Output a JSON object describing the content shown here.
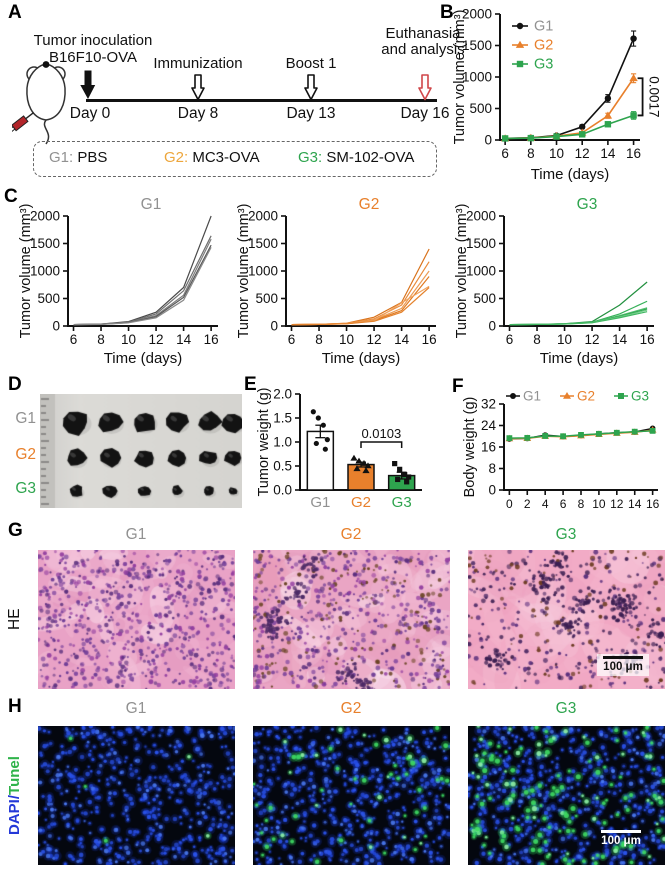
{
  "colors": {
    "g1": "#919191",
    "g2": "#E8802C",
    "g3": "#2EA44E",
    "black": "#111111",
    "dapi_blue": "#2438D8",
    "tunel_green": "#2FB34A",
    "red_arrow": "#D0474A"
  },
  "panel_a": {
    "letter": "A",
    "inoculation_line1": "Tumor inoculation",
    "inoculation_line2": "B16F10-OVA",
    "event_immunization": "Immunization",
    "event_boost": "Boost 1",
    "event_euthanasia_line1": "Euthanasia",
    "event_euthanasia_line2": "and analysis",
    "days": [
      "Day 0",
      "Day 8",
      "Day 13",
      "Day 16"
    ],
    "groups": [
      {
        "id": "G1:",
        "label": "PBS"
      },
      {
        "id": "G2:",
        "label": "MC3-OVA"
      },
      {
        "id": "G3:",
        "label": "SM-102-OVA"
      }
    ]
  },
  "panel_b": {
    "letter": "B"
  },
  "panel_c": {
    "letter": "C"
  },
  "panel_d": {
    "letter": "D",
    "row_labels": [
      "G1",
      "G2",
      "G3"
    ]
  },
  "panel_e": {
    "letter": "E"
  },
  "panel_f": {
    "letter": "F"
  },
  "panel_g": {
    "letter": "G",
    "side_label": "HE",
    "titles": [
      "G1",
      "G2",
      "G3"
    ],
    "scale_bar": "100 μm"
  },
  "panel_h": {
    "letter": "H",
    "side_label_dapi": "DAPI/",
    "side_label_tunel": "Tunel",
    "titles": [
      "G1",
      "G2",
      "G3"
    ],
    "scale_bar": "100 μm"
  },
  "chart_data": {
    "B": {
      "type": "line",
      "title": "",
      "xlabel": "Time (days)",
      "ylabel": "Tumor volume (mm³)",
      "xlim": [
        5.6,
        16.5
      ],
      "ylim": [
        0,
        2000
      ],
      "xticks": [
        6,
        8,
        10,
        12,
        14,
        16
      ],
      "yticks": [
        0,
        500,
        1000,
        1500,
        2000
      ],
      "x": [
        6,
        8,
        10,
        12,
        14,
        16
      ],
      "series": [
        {
          "name": "G1",
          "color": "#111111",
          "label_color": "#919191",
          "marker": "circle",
          "values": [
            25,
            35,
            70,
            210,
            660,
            1610
          ],
          "err": [
            5,
            8,
            12,
            30,
            60,
            120
          ]
        },
        {
          "name": "G2",
          "color": "#E8802C",
          "label_color": "#E8802C",
          "marker": "triangle",
          "values": [
            25,
            32,
            60,
            115,
            385,
            980
          ],
          "err": [
            5,
            6,
            10,
            18,
            40,
            70
          ]
        },
        {
          "name": "G3",
          "color": "#2EA44E",
          "label_color": "#2EA44E",
          "marker": "square",
          "values": [
            25,
            30,
            55,
            90,
            250,
            390
          ],
          "err": [
            5,
            6,
            10,
            15,
            35,
            60
          ]
        }
      ],
      "legend": "vertical-inside",
      "annotation": {
        "type": "vbracket",
        "x": 16,
        "y1": 980,
        "y2": 390,
        "label": "0.0017"
      }
    },
    "C_G1": {
      "type": "line",
      "title": "G1",
      "title_color": "#919191",
      "xlabel": "Time (days)",
      "ylabel": "Tumor volume (mm³)",
      "xlim": [
        5.6,
        16.5
      ],
      "ylim": [
        0,
        2000
      ],
      "xticks": [
        6,
        8,
        10,
        12,
        14,
        16
      ],
      "yticks": [
        0,
        500,
        1000,
        1500,
        2000
      ],
      "x": [
        6,
        8,
        10,
        12,
        14,
        16
      ],
      "series": [
        {
          "color": "#4a4a4a",
          "values": [
            25,
            35,
            80,
            250,
            700,
            2000
          ]
        },
        {
          "color": "#6e6e6e",
          "values": [
            25,
            35,
            70,
            220,
            640,
            1640
          ]
        },
        {
          "color": "#7d7d7d",
          "values": [
            25,
            32,
            65,
            190,
            560,
            1580
          ]
        },
        {
          "color": "#585858",
          "values": [
            25,
            32,
            62,
            170,
            520,
            1470
          ]
        },
        {
          "color": "#8a8a8a",
          "values": [
            25,
            30,
            58,
            150,
            470,
            1430
          ]
        }
      ]
    },
    "C_G2": {
      "type": "line",
      "title": "G2",
      "title_color": "#E8802C",
      "xlabel": "Time (days)",
      "ylabel": "Tumor volume (mm³)",
      "xlim": [
        5.6,
        16.5
      ],
      "ylim": [
        0,
        2000
      ],
      "xticks": [
        6,
        8,
        10,
        12,
        14,
        16
      ],
      "yticks": [
        0,
        500,
        1000,
        1500,
        2000
      ],
      "x": [
        6,
        8,
        10,
        12,
        14,
        16
      ],
      "series": [
        {
          "color": "#d9731c",
          "values": [
            25,
            30,
            50,
            160,
            430,
            1400
          ]
        },
        {
          "color": "#e98b3a",
          "values": [
            25,
            30,
            48,
            130,
            380,
            1170
          ]
        },
        {
          "color": "#ec9c55",
          "values": [
            25,
            30,
            45,
            110,
            320,
            1000
          ]
        },
        {
          "color": "#e07b22",
          "values": [
            25,
            30,
            42,
            100,
            280,
            900
          ]
        },
        {
          "color": "#f0a35e",
          "values": [
            25,
            30,
            40,
            95,
            420,
            720
          ]
        },
        {
          "color": "#e4832e",
          "values": [
            25,
            30,
            40,
            85,
            250,
            700
          ]
        }
      ]
    },
    "C_G3": {
      "type": "line",
      "title": "G3",
      "title_color": "#2EA44E",
      "xlabel": "Time (days)",
      "ylabel": "Tumor volume (mm³)",
      "xlim": [
        5.6,
        16.5
      ],
      "ylim": [
        0,
        2000
      ],
      "xticks": [
        6,
        8,
        10,
        12,
        14,
        16
      ],
      "yticks": [
        0,
        500,
        1000,
        1500,
        2000
      ],
      "x": [
        6,
        8,
        10,
        12,
        14,
        16
      ],
      "series": [
        {
          "color": "#22903f",
          "values": [
            25,
            30,
            42,
            80,
            380,
            800
          ]
        },
        {
          "color": "#36b159",
          "values": [
            25,
            30,
            40,
            70,
            220,
            450
          ]
        },
        {
          "color": "#51c06f",
          "values": [
            25,
            28,
            38,
            65,
            190,
            330
          ]
        },
        {
          "color": "#2ea44e",
          "values": [
            25,
            28,
            38,
            62,
            175,
            310
          ]
        },
        {
          "color": "#6fcd87",
          "values": [
            25,
            28,
            36,
            60,
            165,
            290
          ]
        },
        {
          "color": "#41b862",
          "values": [
            25,
            28,
            36,
            58,
            150,
            260
          ]
        }
      ]
    },
    "E": {
      "type": "bar",
      "ylabel": "Tumor weight (g)",
      "ylim": [
        0,
        2
      ],
      "yticks": [
        0,
        0.5,
        1,
        1.5,
        2
      ],
      "ytick_labels": [
        "0.0",
        "0.5",
        "1.0",
        "1.5",
        "2.0"
      ],
      "categories": [
        "G1",
        "G2",
        "G3"
      ],
      "category_colors": [
        "#919191",
        "#E8802C",
        "#2EA44E"
      ],
      "bars": [
        {
          "mean": 1.22,
          "err": 0.13,
          "fill": "#ffffff",
          "marker": "circle",
          "points": [
            1.63,
            1.5,
            1.35,
            1.05,
            0.97,
            0.85
          ]
        },
        {
          "mean": 0.53,
          "err": 0.05,
          "fill": "#E8802C",
          "marker": "triangle",
          "points": [
            0.66,
            0.6,
            0.55,
            0.5,
            0.44,
            0.4
          ]
        },
        {
          "mean": 0.3,
          "err": 0.07,
          "fill": "#2EA44E",
          "marker": "square",
          "points": [
            0.55,
            0.43,
            0.32,
            0.27,
            0.22,
            0.17
          ]
        }
      ],
      "annotation": {
        "type": "hbracket",
        "i1": 1,
        "i2": 2,
        "y": 1.0,
        "label": "0.0103"
      }
    },
    "F": {
      "type": "line",
      "title": "",
      "xlabel": "",
      "ylabel": "Body weight (g)",
      "xlim": [
        -0.6,
        16.6
      ],
      "ylim": [
        0,
        32
      ],
      "xticks": [
        0,
        2,
        4,
        6,
        8,
        10,
        12,
        14,
        16
      ],
      "yticks": [
        0,
        8,
        16,
        24,
        32
      ],
      "x": [
        0,
        2,
        4,
        6,
        8,
        10,
        12,
        14,
        16
      ],
      "series": [
        {
          "name": "G1",
          "color": "#111111",
          "label_color": "#919191",
          "marker": "circle",
          "values": [
            19,
            19.2,
            20.4,
            19.9,
            20.3,
            20.9,
            21.3,
            21.6,
            22.9
          ]
        },
        {
          "name": "G2",
          "color": "#E8802C",
          "label_color": "#E8802C",
          "marker": "triangle",
          "values": [
            19.1,
            19.2,
            20,
            19.8,
            20.2,
            20.7,
            21.1,
            21.5,
            22.3
          ]
        },
        {
          "name": "G3",
          "color": "#2EA44E",
          "label_color": "#2EA44E",
          "marker": "square",
          "values": [
            19.3,
            19.4,
            20.1,
            20,
            20.5,
            20.9,
            21.3,
            21.7,
            22
          ]
        }
      ],
      "legend": "horizontal-top"
    }
  }
}
